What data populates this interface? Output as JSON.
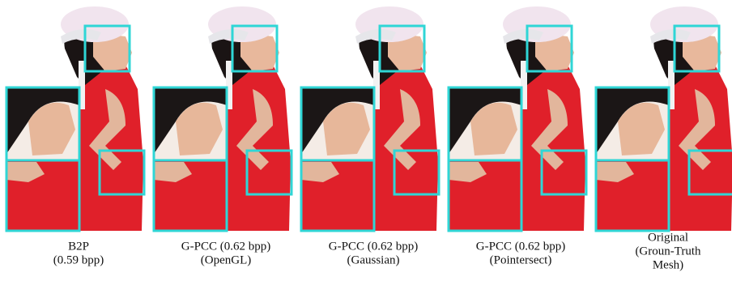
{
  "panels": [
    {
      "caption": [
        "B2P",
        "(0.59 bpp)"
      ]
    },
    {
      "caption": [
        "G-PCC (0.62 bpp)",
        "(OpenGL)"
      ]
    },
    {
      "caption": [
        "G-PCC (0.62 bpp)",
        "(Gaussian)"
      ]
    },
    {
      "caption": [
        "G-PCC (0.62 bpp)",
        "(Pointersect)"
      ]
    },
    {
      "caption": [
        "Original",
        "(Groun-Truth",
        "Mesh)"
      ]
    }
  ]
}
